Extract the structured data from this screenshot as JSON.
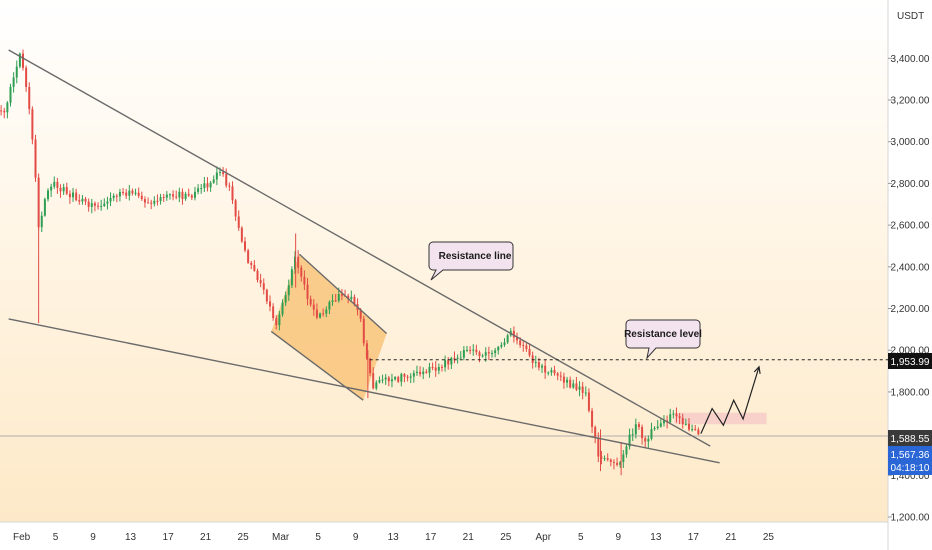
{
  "chart_data": {
    "type": "candlestick",
    "currency": "USDT",
    "ylim": [
      1150,
      3650
    ],
    "y_ticks": [
      1200,
      1400,
      1600,
      1800,
      2000,
      2200,
      2400,
      2600,
      2800,
      3000,
      3200,
      3400
    ],
    "y_tick_labels": [
      "1,200.00",
      "1,400.00",
      "1,600.00",
      "1,800.00",
      "2,000.00",
      "2,200.00",
      "2,400.00",
      "2,600.00",
      "2,800.00",
      "3,000.00",
      "3,200.00",
      "3,400.00"
    ],
    "x_labels": [
      {
        "t": 0,
        "text": "Feb"
      },
      {
        "t": 4,
        "text": "5"
      },
      {
        "t": 8,
        "text": "9"
      },
      {
        "t": 12,
        "text": "13"
      },
      {
        "t": 16,
        "text": "17"
      },
      {
        "t": 20,
        "text": "21"
      },
      {
        "t": 24,
        "text": "25"
      },
      {
        "t": 28,
        "text": "Mar"
      },
      {
        "t": 32,
        "text": "5"
      },
      {
        "t": 36,
        "text": "9"
      },
      {
        "t": 40,
        "text": "13"
      },
      {
        "t": 44,
        "text": "17"
      },
      {
        "t": 48,
        "text": "21"
      },
      {
        "t": 52,
        "text": "25"
      },
      {
        "t": 56,
        "text": "Apr"
      },
      {
        "t": 60,
        "text": "5"
      },
      {
        "t": 64,
        "text": "9"
      },
      {
        "t": 68,
        "text": "13"
      },
      {
        "t": 72,
        "text": "17"
      },
      {
        "t": 76,
        "text": "21"
      },
      {
        "t": 80,
        "text": "25"
      }
    ],
    "price_path": [
      [
        -1.5,
        3150
      ],
      [
        -0.5,
        3300
      ],
      [
        0.2,
        3420
      ],
      [
        0.8,
        3300
      ],
      [
        1.5,
        3050
      ],
      [
        2.2,
        2600
      ],
      [
        2.8,
        2700
      ],
      [
        3.5,
        2800
      ],
      [
        5,
        2760
      ],
      [
        7,
        2720
      ],
      [
        8.5,
        2680
      ],
      [
        10,
        2730
      ],
      [
        12,
        2760
      ],
      [
        14,
        2700
      ],
      [
        16,
        2760
      ],
      [
        18,
        2730
      ],
      [
        20,
        2790
      ],
      [
        21.5,
        2860
      ],
      [
        22.5,
        2780
      ],
      [
        23.5,
        2600
      ],
      [
        24.5,
        2430
      ],
      [
        26,
        2300
      ],
      [
        27.5,
        2120
      ],
      [
        28.5,
        2260
      ],
      [
        29.5,
        2450
      ],
      [
        30.5,
        2300
      ],
      [
        32,
        2150
      ],
      [
        33.5,
        2230
      ],
      [
        35,
        2280
      ],
      [
        36.5,
        2160
      ],
      [
        37.2,
        1940
      ],
      [
        37.8,
        1820
      ],
      [
        39,
        1860
      ],
      [
        41,
        1870
      ],
      [
        43,
        1900
      ],
      [
        45,
        1920
      ],
      [
        46.5,
        1960
      ],
      [
        48,
        2000
      ],
      [
        49.5,
        1960
      ],
      [
        51,
        2010
      ],
      [
        52.5,
        2080
      ],
      [
        54,
        2020
      ],
      [
        55,
        1940
      ],
      [
        56.5,
        1900
      ],
      [
        58,
        1860
      ],
      [
        59,
        1830
      ],
      [
        60.5,
        1790
      ],
      [
        61.3,
        1610
      ],
      [
        62,
        1480
      ],
      [
        63,
        1470
      ],
      [
        64.3,
        1450
      ],
      [
        65.2,
        1590
      ],
      [
        66,
        1650
      ],
      [
        66.8,
        1570
      ],
      [
        67.8,
        1620
      ],
      [
        68.8,
        1660
      ],
      [
        69.8,
        1690
      ],
      [
        70.8,
        1660
      ],
      [
        71.5,
        1640
      ],
      [
        72,
        1608
      ],
      [
        72.8,
        1588
      ]
    ],
    "current_price": "1,588.55",
    "live_price": "1,567.36",
    "countdown": "04:18:10",
    "level_price": "1,953.99",
    "resistance_level_value": 1953.99,
    "trendlines": [
      {
        "name": "upper-wedge-line",
        "from": [
          -1,
          3440
        ],
        "to": [
          73.8,
          1540
        ]
      },
      {
        "name": "lower-wedge-line",
        "from": [
          -1,
          2150
        ],
        "to": [
          74.8,
          1460
        ]
      },
      {
        "name": "channel-upper-line",
        "from": [
          30,
          2460
        ],
        "to": [
          39.3,
          2080
        ]
      },
      {
        "name": "channel-lower-line",
        "from": [
          27,
          2090
        ],
        "to": [
          36.8,
          1760
        ]
      }
    ],
    "projection_path": [
      [
        72.8,
        1600
      ],
      [
        74,
        1720
      ],
      [
        75.2,
        1640
      ],
      [
        76.3,
        1760
      ],
      [
        77.3,
        1670
      ],
      [
        79,
        1920
      ]
    ],
    "annotations": {
      "resistance_line": "Resistance line",
      "resistance_level": "Resistance level"
    },
    "colors": {
      "up": "#2e9e53",
      "down": "#e34b45",
      "trendline": "#6a6a6a",
      "channel_fill": "#f8bf6f",
      "zone_fill": "#f4c7c7",
      "price_tag": "#3a3a3a",
      "live_tag": "#2a66d6",
      "level_tag": "#111111"
    }
  }
}
